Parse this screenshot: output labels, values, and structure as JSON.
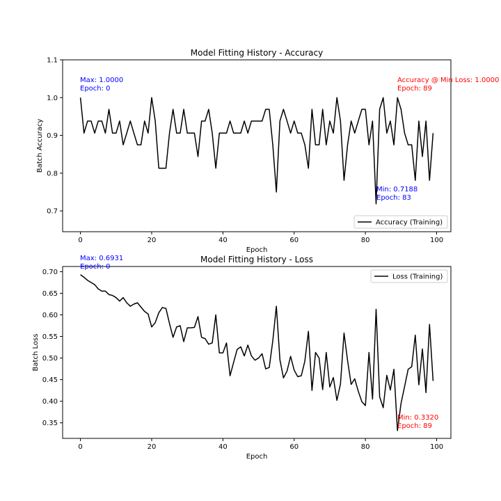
{
  "chart_data": [
    {
      "type": "line",
      "title": "Model Fitting History - Accuracy",
      "xlabel": "Epoch",
      "ylabel": "Batch Accuracy",
      "xlim": [
        -5,
        104
      ],
      "ylim": [
        0.645,
        1.1
      ],
      "xticks": [
        0,
        20,
        40,
        60,
        80,
        100
      ],
      "yticks": [
        0.7,
        0.8,
        0.9,
        1.0,
        1.1
      ],
      "ytick_labels": [
        "0.7",
        "0.8",
        "0.9",
        "1.0",
        "1.1"
      ],
      "legend_position": "lower-right",
      "series": [
        {
          "name": "Accuracy (Training)",
          "color": "#000000",
          "x_start": 0,
          "values": [
            1.0,
            0.906,
            0.938,
            0.938,
            0.906,
            0.938,
            0.938,
            0.906,
            0.969,
            0.906,
            0.906,
            0.938,
            0.875,
            0.906,
            0.938,
            0.906,
            0.875,
            0.875,
            0.938,
            0.906,
            1.0,
            0.938,
            0.813,
            0.813,
            0.813,
            0.906,
            0.969,
            0.906,
            0.906,
            0.969,
            0.906,
            0.906,
            0.906,
            0.844,
            0.938,
            0.938,
            0.969,
            0.906,
            0.813,
            0.906,
            0.906,
            0.906,
            0.938,
            0.906,
            0.906,
            0.906,
            0.938,
            0.906,
            0.938,
            0.938,
            0.938,
            0.938,
            0.969,
            0.969,
            0.875,
            0.75,
            0.938,
            0.969,
            0.938,
            0.906,
            0.938,
            0.906,
            0.906,
            0.875,
            0.813,
            0.969,
            0.875,
            0.875,
            0.969,
            0.875,
            0.938,
            0.906,
            1.0,
            0.938,
            0.781,
            0.875,
            0.938,
            0.906,
            0.938,
            0.969,
            0.969,
            0.875,
            0.938,
            0.7188,
            0.969,
            1.0,
            0.906,
            0.938,
            0.875,
            1.0,
            0.969,
            0.906,
            0.875,
            0.875,
            0.781,
            0.938,
            0.844,
            0.938,
            0.781,
            0.906
          ]
        }
      ],
      "annotations": [
        {
          "lines": [
            "Max: 1.0000",
            "Epoch: 0"
          ],
          "color": "#0000ff"
        },
        {
          "lines": [
            "Accuracy @ Min Loss: 1.0000",
            "Epoch: 89"
          ],
          "color": "#ff0000"
        },
        {
          "lines": [
            "Min: 0.7188",
            "Epoch: 83"
          ],
          "color": "#0000ff"
        }
      ]
    },
    {
      "type": "line",
      "title": "Model Fitting History - Loss",
      "xlabel": "Epoch",
      "ylabel": "Batch Loss",
      "xlim": [
        -5,
        104
      ],
      "ylim": [
        0.314,
        0.712
      ],
      "xticks": [
        0,
        20,
        40,
        60,
        80,
        100
      ],
      "yticks": [
        0.35,
        0.4,
        0.45,
        0.5,
        0.55,
        0.6,
        0.65,
        0.7
      ],
      "ytick_labels": [
        "0.35",
        "0.40",
        "0.45",
        "0.50",
        "0.55",
        "0.60",
        "0.65",
        "0.70"
      ],
      "legend_position": "upper-right",
      "series": [
        {
          "name": "Loss (Training)",
          "color": "#000000",
          "x_start": 0,
          "values": [
            0.6931,
            0.687,
            0.68,
            0.675,
            0.67,
            0.66,
            0.655,
            0.655,
            0.647,
            0.645,
            0.64,
            0.632,
            0.64,
            0.628,
            0.62,
            0.625,
            0.628,
            0.618,
            0.608,
            0.602,
            0.572,
            0.582,
            0.605,
            0.617,
            0.615,
            0.58,
            0.548,
            0.572,
            0.575,
            0.538,
            0.57,
            0.57,
            0.571,
            0.596,
            0.548,
            0.545,
            0.532,
            0.535,
            0.6,
            0.512,
            0.512,
            0.535,
            0.459,
            0.49,
            0.52,
            0.526,
            0.505,
            0.53,
            0.505,
            0.495,
            0.5,
            0.51,
            0.475,
            0.478,
            0.54,
            0.62,
            0.496,
            0.454,
            0.47,
            0.504,
            0.472,
            0.457,
            0.459,
            0.493,
            0.562,
            0.425,
            0.513,
            0.5,
            0.427,
            0.513,
            0.433,
            0.455,
            0.402,
            0.44,
            0.558,
            0.494,
            0.439,
            0.452,
            0.423,
            0.399,
            0.39,
            0.513,
            0.405,
            0.613,
            0.41,
            0.385,
            0.46,
            0.426,
            0.474,
            0.332,
            0.395,
            0.434,
            0.474,
            0.48,
            0.553,
            0.438,
            0.521,
            0.42,
            0.578,
            0.447
          ]
        }
      ],
      "annotations": [
        {
          "lines": [
            "Max: 0.6931",
            "Epoch: 0"
          ],
          "color": "#0000ff"
        },
        {
          "lines": [
            "Min: 0.3320",
            "Epoch: 89"
          ],
          "color": "#ff0000"
        }
      ]
    }
  ]
}
